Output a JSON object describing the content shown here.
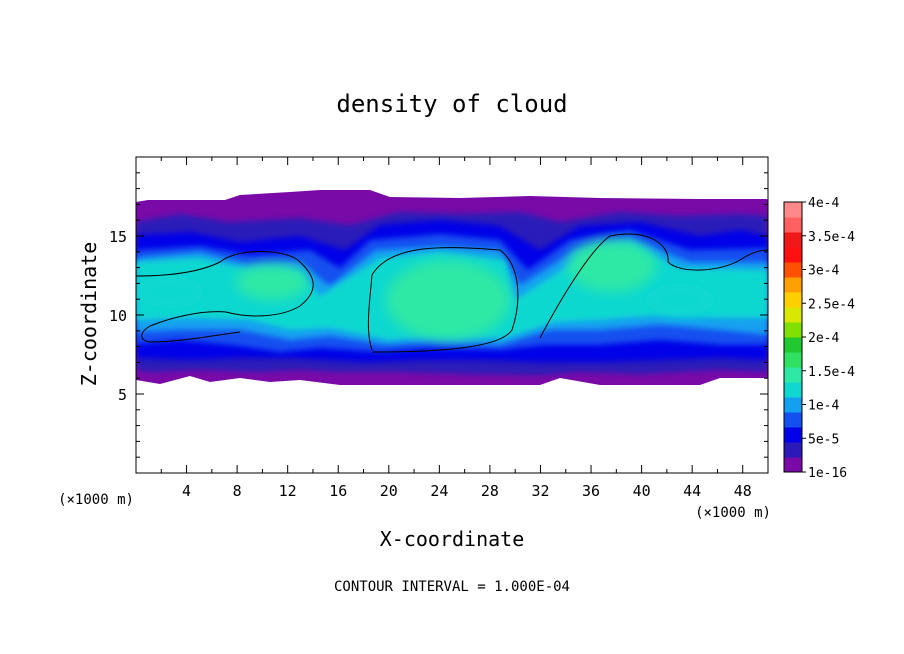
{
  "chart_data": {
    "type": "heatmap",
    "title": "density of cloud",
    "xlabel": "X-coordinate",
    "ylabel": "Z-coordinate",
    "x_unit": "(×1000 m)",
    "y_unit": "(×1000 m)",
    "xlim": [
      0,
      50
    ],
    "ylim": [
      0,
      20
    ],
    "x_ticks": [
      4,
      8,
      12,
      16,
      20,
      24,
      28,
      32,
      36,
      40,
      44,
      48
    ],
    "y_ticks": [
      5,
      10,
      15
    ],
    "cloud_base_z": 5.8,
    "cloud_top_z": 17.0,
    "footer": "CONTOUR INTERVAL = 1.000E-04",
    "colorbar": {
      "labels": [
        "1e-16",
        "5e-5",
        "1e-4",
        "1.5e-4",
        "2e-4",
        "2.5e-4",
        "3e-4",
        "3.5e-4",
        "4e-4"
      ],
      "values": [
        1e-16,
        5e-05,
        0.0001,
        0.00015,
        0.0002,
        0.00025,
        0.0003,
        0.00035,
        0.0004
      ],
      "colors": [
        "#7a0aa8",
        "#2a1ab8",
        "#0000e8",
        "#1450f0",
        "#14a0f0",
        "#10d8d0",
        "#2ee8a6",
        "#30e060",
        "#22c830",
        "#80e000",
        "#d8e800",
        "#ffd000",
        "#ffa000",
        "#ff5000",
        "#ff1010",
        "#f01818",
        "#ff6060",
        "#ff8888"
      ]
    },
    "contour_level": 0.0001,
    "cells": [
      {
        "name": "left",
        "x_center": 6,
        "z_center": 12.0,
        "peak": 0.00016
      },
      {
        "name": "center",
        "x_center": 24,
        "z_center": 11.5,
        "peak": 0.00016
      },
      {
        "name": "right",
        "x_center": 38,
        "z_center": 12.5,
        "peak": 0.00016
      }
    ]
  }
}
